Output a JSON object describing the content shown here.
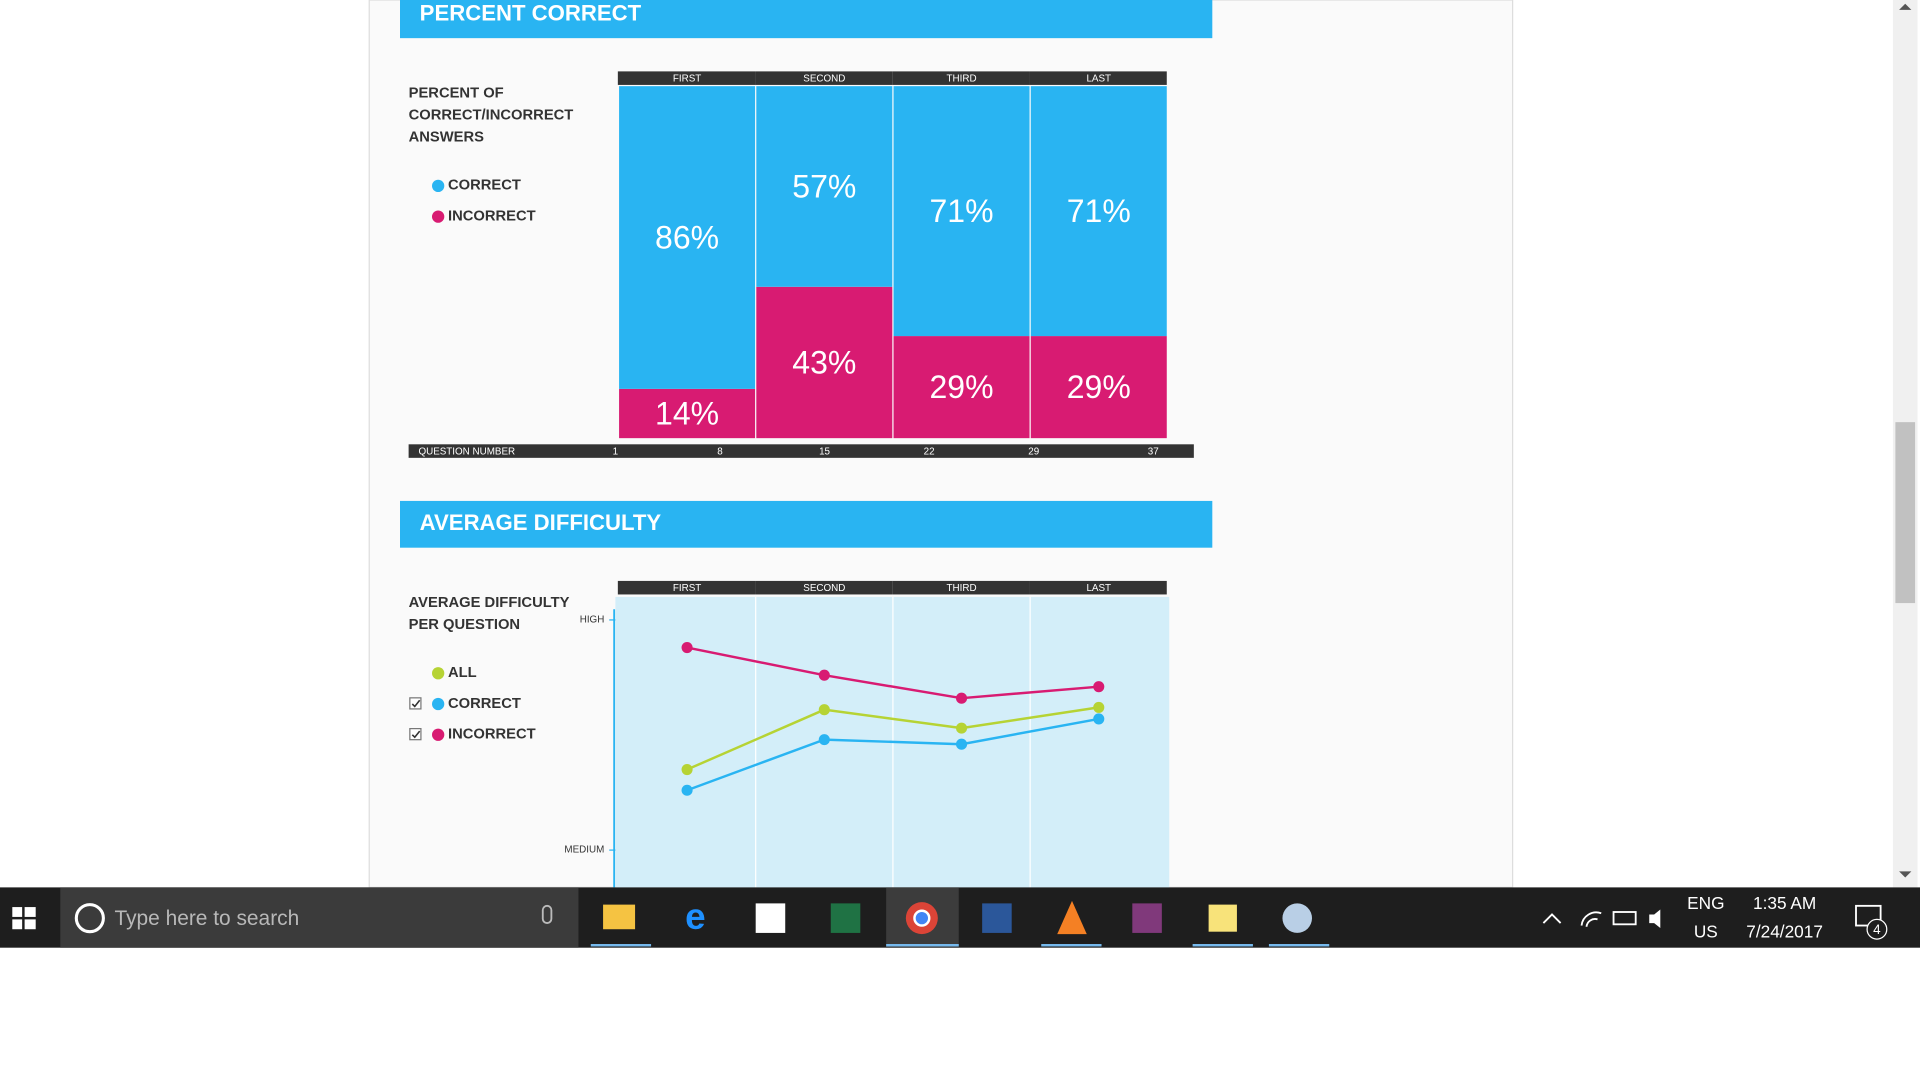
{
  "taskbar": {
    "search": "Type here to search",
    "lang": "ENG",
    "region": "US",
    "time": "1:35 AM",
    "date": "7/24/2017",
    "notifications": "4"
  },
  "chart_data": [
    {
      "type": "bar",
      "stacked": true,
      "title": "PERCENT CORRECT",
      "legend_title": [
        "PERCENT OF",
        "CORRECT/INCORRECT",
        "ANSWERS"
      ],
      "categories": [
        "FIRST",
        "SECOND",
        "THIRD",
        "LAST"
      ],
      "series": [
        {
          "name": "CORRECT",
          "color": "#29b4f2",
          "values": [
            86,
            57,
            71,
            71
          ],
          "value_labels": [
            "86%",
            "57%",
            "71%",
            "71%"
          ]
        },
        {
          "name": "INCORRECT",
          "color": "#d81b72",
          "values": [
            14,
            43,
            29,
            29
          ],
          "value_labels": [
            "14%",
            "43%",
            "29%",
            "29%"
          ]
        }
      ],
      "ylim": [
        0,
        100
      ],
      "xlabel": "QUESTION NUMBER",
      "xlim": [
        1,
        37
      ],
      "xticks": [
        1,
        8,
        15,
        22,
        29,
        37
      ]
    },
    {
      "type": "line",
      "title": "AVERAGE DIFFICULTY",
      "legend_title": [
        "AVERAGE DIFFICULTY",
        "PER QUESTION"
      ],
      "categories": [
        "FIRST",
        "SECOND",
        "THIRD",
        "LAST"
      ],
      "series": [
        {
          "name": "ALL",
          "color": "#b6d334",
          "checkbox": false,
          "values": [
            2.35,
            2.61,
            2.53,
            2.62
          ]
        },
        {
          "name": "CORRECT",
          "color": "#29b4f2",
          "checkbox": true,
          "values": [
            2.26,
            2.48,
            2.46,
            2.57
          ]
        },
        {
          "name": "INCORRECT",
          "color": "#d81b72",
          "checkbox": true,
          "values": [
            2.88,
            2.76,
            2.66,
            2.71
          ]
        }
      ],
      "ylim": [
        1,
        3.1
      ],
      "yticks": [
        {
          "value": 2,
          "label": "MEDIUM"
        },
        {
          "value": 3,
          "label": "HIGH"
        }
      ]
    }
  ]
}
